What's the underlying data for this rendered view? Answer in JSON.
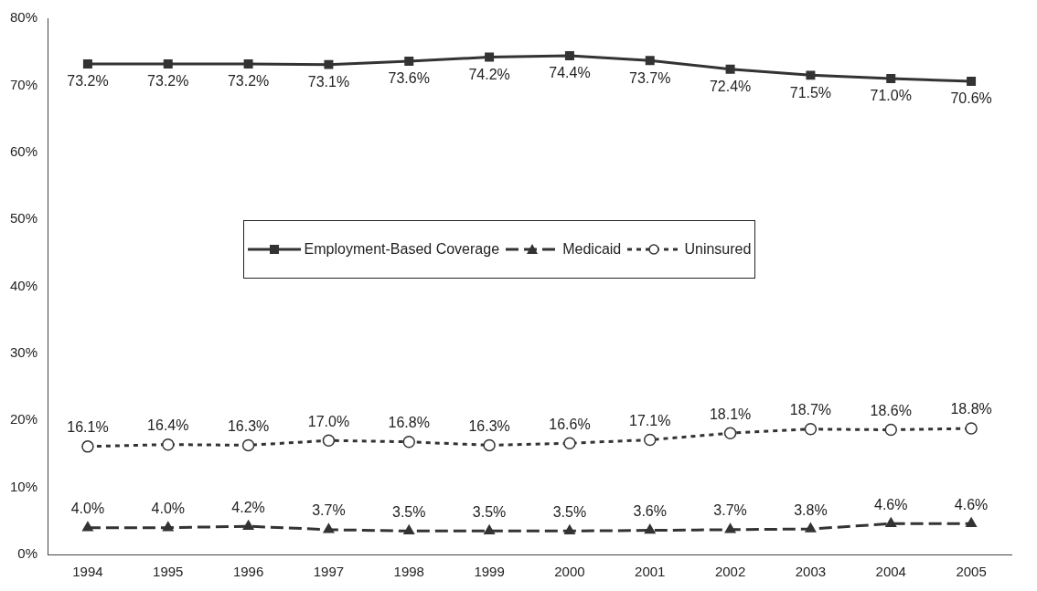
{
  "chart_data": {
    "type": "line",
    "categories": [
      "1994",
      "1995",
      "1996",
      "1997",
      "1998",
      "1999",
      "2000",
      "2001",
      "2002",
      "2003",
      "2004",
      "2005"
    ],
    "ylim": [
      0,
      80
    ],
    "yticks": [
      {
        "value": 0,
        "label": "0%"
      },
      {
        "value": 10,
        "label": "10%"
      },
      {
        "value": 20,
        "label": "20%"
      },
      {
        "value": 30,
        "label": "30%"
      },
      {
        "value": 40,
        "label": "40%"
      },
      {
        "value": 50,
        "label": "50%"
      },
      {
        "value": 60,
        "label": "60%"
      },
      {
        "value": 70,
        "label": "70%"
      },
      {
        "value": 80,
        "label": "80%"
      }
    ],
    "grid": false,
    "legend": "center",
    "data_labels": true,
    "series": [
      {
        "name": "Employment-Based Coverage",
        "color": "#333333",
        "marker": "square",
        "line_style": "solid",
        "values": [
          73.2,
          73.2,
          73.2,
          73.1,
          73.6,
          74.2,
          74.4,
          73.7,
          72.4,
          71.5,
          71.0,
          70.6
        ],
        "value_labels": [
          "73.2%",
          "73.2%",
          "73.2%",
          "73.1%",
          "73.6%",
          "74.2%",
          "74.4%",
          "73.7%",
          "72.4%",
          "71.5%",
          "71.0%",
          "70.6%"
        ]
      },
      {
        "name": "Medicaid",
        "color": "#333333",
        "marker": "triangle",
        "line_style": "dashed",
        "values": [
          4.0,
          4.0,
          4.2,
          3.7,
          3.5,
          3.5,
          3.5,
          3.6,
          3.7,
          3.8,
          4.6,
          4.6
        ],
        "value_labels": [
          "4.0%",
          "4.0%",
          "4.2%",
          "3.7%",
          "3.5%",
          "3.5%",
          "3.5%",
          "3.6%",
          "3.7%",
          "3.8%",
          "4.6%",
          "4.6%"
        ]
      },
      {
        "name": "Uninsured",
        "color": "#333333",
        "marker": "circle",
        "line_style": "dotted",
        "values": [
          16.1,
          16.4,
          16.3,
          17.0,
          16.8,
          16.3,
          16.6,
          17.1,
          18.1,
          18.7,
          18.6,
          18.8
        ],
        "value_labels": [
          "16.1%",
          "16.4%",
          "16.3%",
          "17.0%",
          "16.8%",
          "16.3%",
          "16.6%",
          "17.1%",
          "18.1%",
          "18.7%",
          "18.6%",
          "18.8%"
        ]
      }
    ]
  }
}
